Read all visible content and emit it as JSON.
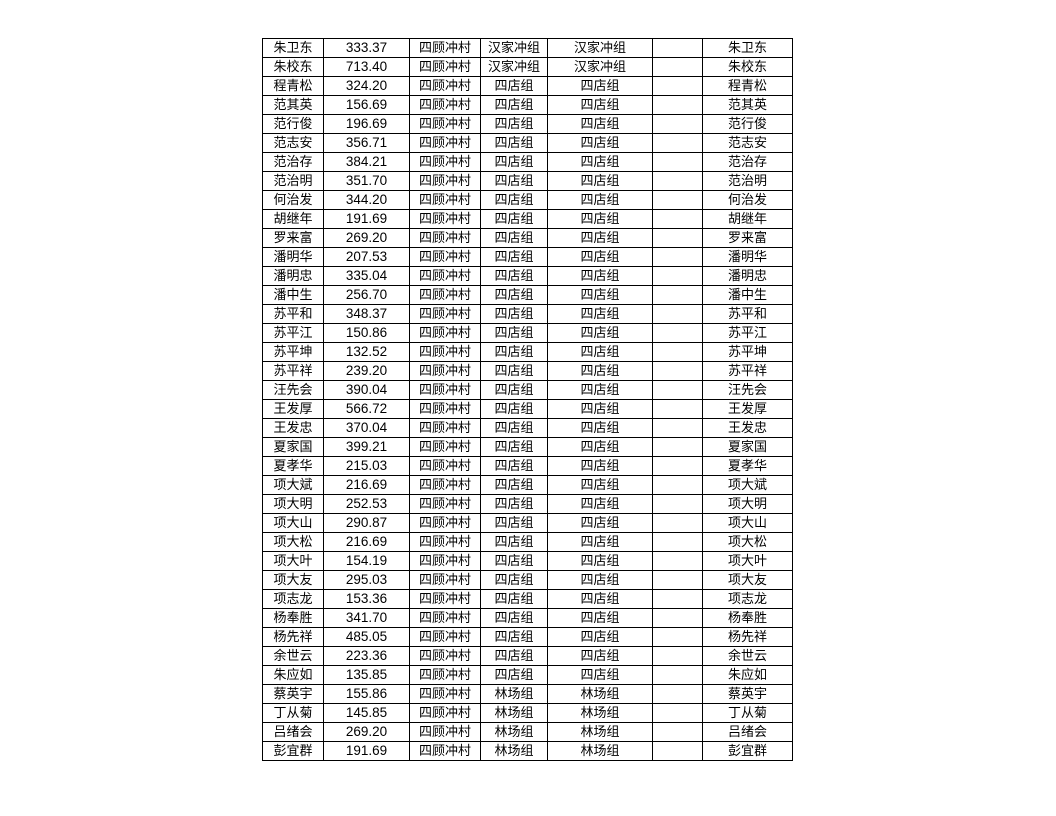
{
  "colors": {
    "page_bg": "#ffffff",
    "border": "#000000",
    "text": "#000000"
  },
  "table": {
    "village_name": "四顾冲村",
    "group_names": [
      "汉家冲组",
      "四店组",
      "林场组"
    ],
    "rows": [
      [
        "朱卫东",
        "333.37",
        "四顾冲村",
        "汉家冲组",
        "汉家冲组",
        "",
        "朱卫东"
      ],
      [
        "朱校东",
        "713.40",
        "四顾冲村",
        "汉家冲组",
        "汉家冲组",
        "",
        "朱校东"
      ],
      [
        "程青松",
        "324.20",
        "四顾冲村",
        "四店组",
        "四店组",
        "",
        "程青松"
      ],
      [
        "范其英",
        "156.69",
        "四顾冲村",
        "四店组",
        "四店组",
        "",
        "范其英"
      ],
      [
        "范行俊",
        "196.69",
        "四顾冲村",
        "四店组",
        "四店组",
        "",
        "范行俊"
      ],
      [
        "范志安",
        "356.71",
        "四顾冲村",
        "四店组",
        "四店组",
        "",
        "范志安"
      ],
      [
        "范治存",
        "384.21",
        "四顾冲村",
        "四店组",
        "四店组",
        "",
        "范治存"
      ],
      [
        "范治明",
        "351.70",
        "四顾冲村",
        "四店组",
        "四店组",
        "",
        "范治明"
      ],
      [
        "何治发",
        "344.20",
        "四顾冲村",
        "四店组",
        "四店组",
        "",
        "何治发"
      ],
      [
        "胡继年",
        "191.69",
        "四顾冲村",
        "四店组",
        "四店组",
        "",
        "胡继年"
      ],
      [
        "罗来富",
        "269.20",
        "四顾冲村",
        "四店组",
        "四店组",
        "",
        "罗来富"
      ],
      [
        "潘明华",
        "207.53",
        "四顾冲村",
        "四店组",
        "四店组",
        "",
        "潘明华"
      ],
      [
        "潘明忠",
        "335.04",
        "四顾冲村",
        "四店组",
        "四店组",
        "",
        "潘明忠"
      ],
      [
        "潘中生",
        "256.70",
        "四顾冲村",
        "四店组",
        "四店组",
        "",
        "潘中生"
      ],
      [
        "苏平和",
        "348.37",
        "四顾冲村",
        "四店组",
        "四店组",
        "",
        "苏平和"
      ],
      [
        "苏平江",
        "150.86",
        "四顾冲村",
        "四店组",
        "四店组",
        "",
        "苏平江"
      ],
      [
        "苏平坤",
        "132.52",
        "四顾冲村",
        "四店组",
        "四店组",
        "",
        "苏平坤"
      ],
      [
        "苏平祥",
        "239.20",
        "四顾冲村",
        "四店组",
        "四店组",
        "",
        "苏平祥"
      ],
      [
        "汪先会",
        "390.04",
        "四顾冲村",
        "四店组",
        "四店组",
        "",
        "汪先会"
      ],
      [
        "王发厚",
        "566.72",
        "四顾冲村",
        "四店组",
        "四店组",
        "",
        "王发厚"
      ],
      [
        "王发忠",
        "370.04",
        "四顾冲村",
        "四店组",
        "四店组",
        "",
        "王发忠"
      ],
      [
        "夏家国",
        "399.21",
        "四顾冲村",
        "四店组",
        "四店组",
        "",
        "夏家国"
      ],
      [
        "夏孝华",
        "215.03",
        "四顾冲村",
        "四店组",
        "四店组",
        "",
        "夏孝华"
      ],
      [
        "项大斌",
        "216.69",
        "四顾冲村",
        "四店组",
        "四店组",
        "",
        "项大斌"
      ],
      [
        "项大明",
        "252.53",
        "四顾冲村",
        "四店组",
        "四店组",
        "",
        "项大明"
      ],
      [
        "项大山",
        "290.87",
        "四顾冲村",
        "四店组",
        "四店组",
        "",
        "项大山"
      ],
      [
        "项大松",
        "216.69",
        "四顾冲村",
        "四店组",
        "四店组",
        "",
        "项大松"
      ],
      [
        "项大叶",
        "154.19",
        "四顾冲村",
        "四店组",
        "四店组",
        "",
        "项大叶"
      ],
      [
        "项大友",
        "295.03",
        "四顾冲村",
        "四店组",
        "四店组",
        "",
        "项大友"
      ],
      [
        "项志龙",
        "153.36",
        "四顾冲村",
        "四店组",
        "四店组",
        "",
        "项志龙"
      ],
      [
        "杨奉胜",
        "341.70",
        "四顾冲村",
        "四店组",
        "四店组",
        "",
        "杨奉胜"
      ],
      [
        "杨先祥",
        "485.05",
        "四顾冲村",
        "四店组",
        "四店组",
        "",
        "杨先祥"
      ],
      [
        "余世云",
        "223.36",
        "四顾冲村",
        "四店组",
        "四店组",
        "",
        "余世云"
      ],
      [
        "朱应如",
        "135.85",
        "四顾冲村",
        "四店组",
        "四店组",
        "",
        "朱应如"
      ],
      [
        "蔡英宇",
        "155.86",
        "四顾冲村",
        "林场组",
        "林场组",
        "",
        "蔡英宇"
      ],
      [
        "丁从菊",
        "145.85",
        "四顾冲村",
        "林场组",
        "林场组",
        "",
        "丁从菊"
      ],
      [
        "吕绪会",
        "269.20",
        "四顾冲村",
        "林场组",
        "林场组",
        "",
        "吕绪会"
      ],
      [
        "彭宜群",
        "191.69",
        "四顾冲村",
        "林场组",
        "林场组",
        "",
        "彭宜群"
      ]
    ]
  }
}
